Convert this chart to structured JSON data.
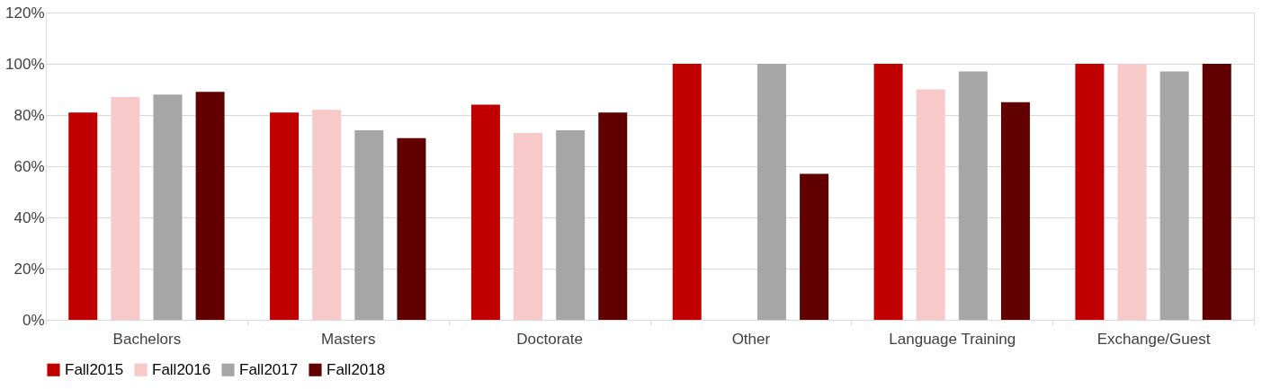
{
  "chart_data": {
    "type": "bar",
    "categories": [
      "Bachelors",
      "Masters",
      "Doctorate",
      "Other",
      "Language Training",
      "Exchange/Guest"
    ],
    "series": [
      {
        "name": "Fall2015",
        "color": "#c00000",
        "values": [
          81,
          81,
          84,
          100,
          100,
          100
        ]
      },
      {
        "name": "Fall2016",
        "color": "#f8c9c9",
        "values": [
          87,
          82,
          73,
          null,
          90,
          100
        ]
      },
      {
        "name": "Fall2017",
        "color": "#a6a6a6",
        "values": [
          88,
          74,
          74,
          100,
          97,
          97
        ]
      },
      {
        "name": "Fall2018",
        "color": "#600000",
        "values": [
          89,
          71,
          81,
          57,
          85,
          100
        ]
      }
    ],
    "ylim": [
      0,
      120
    ],
    "yticks": [
      {
        "value": 0,
        "label": "0%"
      },
      {
        "value": 20,
        "label": "20%"
      },
      {
        "value": 40,
        "label": "40%"
      },
      {
        "value": 60,
        "label": "60%"
      },
      {
        "value": 80,
        "label": "80%"
      },
      {
        "value": 100,
        "label": "100%"
      },
      {
        "value": 120,
        "label": "120%"
      }
    ],
    "grid": "y",
    "legend": "bottom"
  }
}
